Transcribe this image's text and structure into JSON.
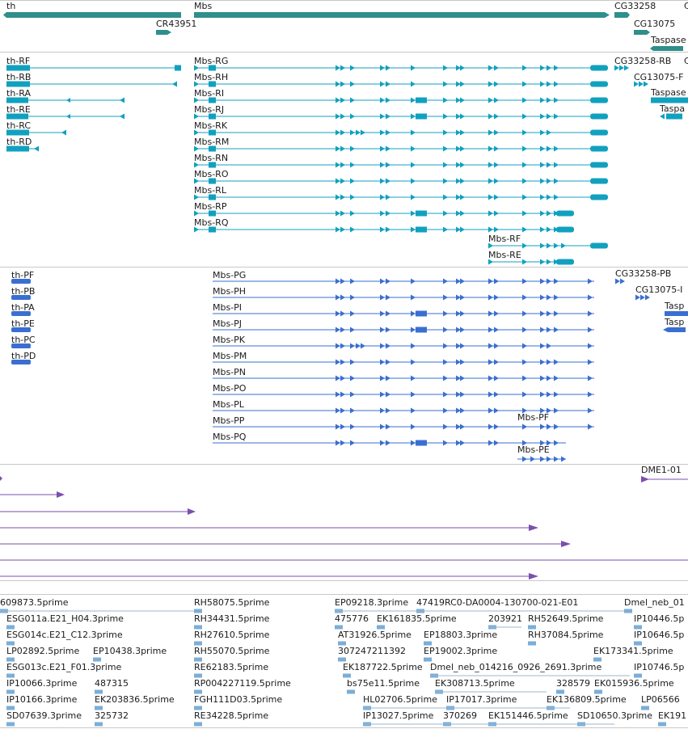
{
  "colors": {
    "gene": "#2f8f8a",
    "mrna": "#10a1bf",
    "protein": "#3a6fd1",
    "cdna": "#7b4fae",
    "est": "#7aaed8",
    "line": "#9ab7cf"
  },
  "tracks": {
    "genes": {
      "labels": [
        "th",
        "Mbs",
        "CR43951",
        "CG33258",
        "CG13075",
        "Taspase",
        "C"
      ]
    },
    "transcripts": {
      "labels": [
        "th-RF",
        "th-RB",
        "th-RA",
        "th-RE",
        "th-RC",
        "th-RD",
        "Mbs-RG",
        "Mbs-RH",
        "Mbs-RI",
        "Mbs-RJ",
        "Mbs-RK",
        "Mbs-RM",
        "Mbs-RN",
        "Mbs-RO",
        "Mbs-RL",
        "Mbs-RP",
        "Mbs-RQ",
        "Mbs-RF",
        "Mbs-RE",
        "CG33258-RB",
        "C",
        "CG13075-F",
        "Taspase",
        "Taspa"
      ]
    },
    "proteins": {
      "labels": [
        "th-PF",
        "th-PB",
        "th-PA",
        "th-PE",
        "th-PC",
        "th-PD",
        "Mbs-PG",
        "Mbs-PH",
        "Mbs-PI",
        "Mbs-PJ",
        "Mbs-PK",
        "Mbs-PM",
        "Mbs-PN",
        "Mbs-PO",
        "Mbs-PL",
        "Mbs-PP",
        "Mbs-PF",
        "Mbs-PQ",
        "Mbs-PE",
        "CG33258-PB",
        "CG13075-I",
        "Tasp",
        "Tasp"
      ]
    },
    "cdnas": {
      "labels": [
        "DME1-01"
      ]
    },
    "ests": {
      "labels": [
        "609873.5prime",
        "RH58075.5prime",
        "EP09218.3prime",
        "47419RC0-DA0004-130700-021-E01",
        "Dmel_neb_01",
        "ESG011a.E21_H04.3prime",
        "RH34431.5prime",
        "475776",
        "EK161835.5prime",
        "203921",
        "RH52649.5prime",
        "IP10446.5p",
        "ESG014c.E21_C12.3prime",
        "RH27610.5prime",
        "AT31926.5prime",
        "EP18803.3prime",
        "RH37084.5prime",
        "IP10646.5p",
        "LP02892.5prime",
        "EP10438.3prime",
        "RH55070.5prime",
        "307247211392",
        "EP19002.3prime",
        "EK173341.5prime",
        "ESG013c.E21_F01.3prime",
        "RE62183.5prime",
        "EK187722.5prime",
        "Dmel_neb_014216_0926_2691.3prime",
        "IP10746.5p",
        "IP10066.3prime",
        "487315",
        "RP004227119.5prime",
        "bs75e11.5prime",
        "EK308713.5prime",
        "328579",
        "EK015936.5prime",
        "IP10166.3prime",
        "EK203836.5prime",
        "FGH111D03.5prime",
        "HL02706.5prime",
        "IP17017.3prime",
        "EK136809.5prime",
        "LP06566",
        "SD07639.3prime",
        "325732",
        "RE34228.5prime",
        "IP13027.5prime",
        "370269",
        "EK151446.5prime",
        "SD10650.3prime",
        "EK191"
      ]
    }
  }
}
